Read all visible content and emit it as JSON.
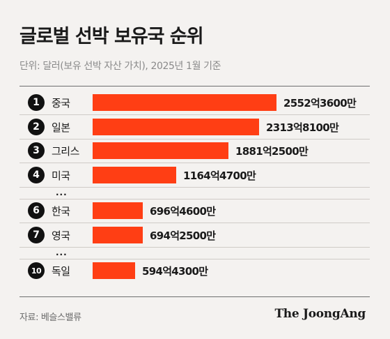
{
  "title": "글로벌 선박 보유국 순위",
  "subtitle": "단위: 달러(보유 선박 자산 가치), 2025년 1월 기준",
  "source": "자료: 베슬스밸류",
  "brand": "The JoongAng",
  "ellipsis": "...",
  "colors": {
    "bar": "#ff3e14",
    "rank_circle": "#111111",
    "background": "#f4f2f0"
  },
  "chart_data": {
    "type": "bar",
    "orientation": "horizontal",
    "title": "글로벌 선박 보유국 순위",
    "subtitle": "단위: 달러(보유 선박 자산 가치), 2025년 1월 기준",
    "unit": "달러",
    "rows": [
      {
        "rank": "1",
        "country": "중국",
        "value": 255236000000,
        "label": "2552억3600만"
      },
      {
        "rank": "2",
        "country": "일본",
        "value": 231381000000,
        "label": "2313억8100만"
      },
      {
        "rank": "3",
        "country": "그리스",
        "value": 188125000000,
        "label": "1881억2500만"
      },
      {
        "rank": "4",
        "country": "미국",
        "value": 116447000000,
        "label": "1164억4700만"
      },
      {
        "rank": "6",
        "country": "한국",
        "value": 69646000000,
        "label": "696억4600만"
      },
      {
        "rank": "7",
        "country": "영국",
        "value": 69425000000,
        "label": "694억2500만"
      },
      {
        "rank": "10",
        "country": "독일",
        "value": 59443000000,
        "label": "594억4300만"
      }
    ],
    "gaps_after_rank": [
      "4",
      "7"
    ]
  }
}
